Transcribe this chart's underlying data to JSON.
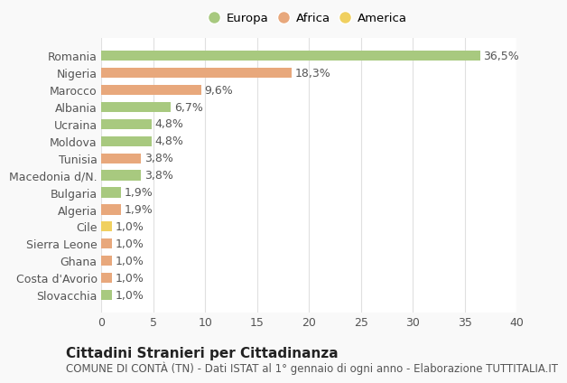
{
  "categories": [
    "Romania",
    "Nigeria",
    "Marocco",
    "Albania",
    "Ucraina",
    "Moldova",
    "Tunisia",
    "Macedonia d/N.",
    "Bulgaria",
    "Algeria",
    "Cile",
    "Sierra Leone",
    "Ghana",
    "Costa d'Avorio",
    "Slovacchia"
  ],
  "values": [
    36.5,
    18.3,
    9.6,
    6.7,
    4.8,
    4.8,
    3.8,
    3.8,
    1.9,
    1.9,
    1.0,
    1.0,
    1.0,
    1.0,
    1.0
  ],
  "labels": [
    "36,5%",
    "18,3%",
    "9,6%",
    "6,7%",
    "4,8%",
    "4,8%",
    "3,8%",
    "3,8%",
    "1,9%",
    "1,9%",
    "1,0%",
    "1,0%",
    "1,0%",
    "1,0%",
    "1,0%"
  ],
  "continents": [
    "Europa",
    "Africa",
    "Africa",
    "Europa",
    "Europa",
    "Europa",
    "Africa",
    "Europa",
    "Europa",
    "Africa",
    "America",
    "Africa",
    "Africa",
    "Africa",
    "Europa"
  ],
  "colors": {
    "Europa": "#a8c97f",
    "Africa": "#e8a87c",
    "America": "#f0d060"
  },
  "xlim": [
    0,
    40
  ],
  "xticks": [
    0,
    5,
    10,
    15,
    20,
    25,
    30,
    35,
    40
  ],
  "title": "Cittadini Stranieri per Cittadinanza",
  "subtitle": "COMUNE DI CONTÀ (TN) - Dati ISTAT al 1° gennaio di ogni anno - Elaborazione TUTTITALIA.IT",
  "bg_color": "#f9f9f9",
  "plot_bg_color": "#ffffff",
  "grid_color": "#e0e0e0",
  "label_fontsize": 9,
  "tick_fontsize": 9,
  "title_fontsize": 11,
  "subtitle_fontsize": 8.5,
  "bar_height": 0.6
}
